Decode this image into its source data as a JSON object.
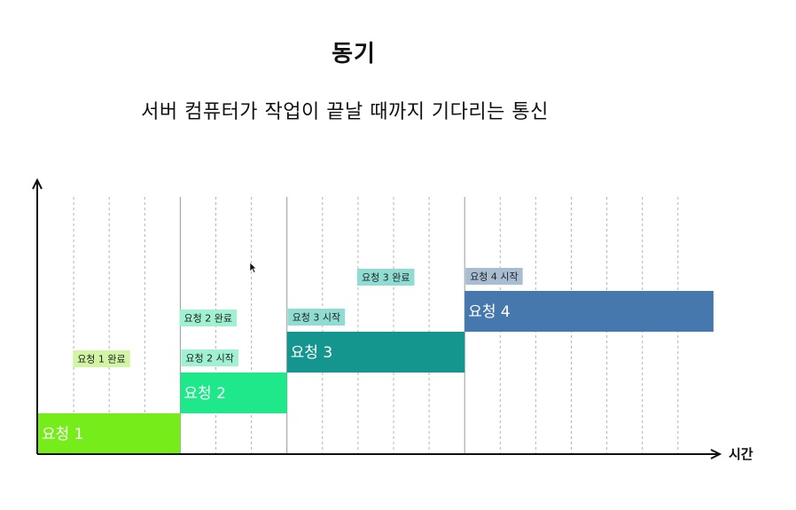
{
  "title": "동기",
  "subtitle": "서버 컴퓨터가 작업이 끝날 때까지 기다리는 통신",
  "axis": {
    "x_label": "시간"
  },
  "requests": [
    {
      "label": "요청 1",
      "start": 0,
      "end": 4,
      "level": 1,
      "color": "#77ec1b"
    },
    {
      "label": "요청 2",
      "start": 4,
      "end": 7,
      "level": 2,
      "color": "#1ee88a"
    },
    {
      "label": "요청 3",
      "start": 7,
      "end": 12,
      "level": 3,
      "color": "#14968f"
    },
    {
      "label": "요청 4",
      "start": 12,
      "end": 19,
      "level": 4,
      "color": "#4678ae"
    }
  ],
  "events": [
    {
      "label": "요청 1 완료",
      "at": 2,
      "color": "#d1f5a4"
    },
    {
      "label": "요청 2 시작",
      "at": 4,
      "color": "#9ff1d2"
    },
    {
      "label": "요청 2 완료",
      "at": 5,
      "color": "#9ff1d2"
    },
    {
      "label": "요청 3 시작",
      "at": 7,
      "color": "#8fdcd3"
    },
    {
      "label": "요청 3 완료",
      "at": 10,
      "color": "#8fdcd3"
    },
    {
      "label": "요청 4 시작",
      "at": 12,
      "color": "#a9bdd2"
    }
  ]
}
